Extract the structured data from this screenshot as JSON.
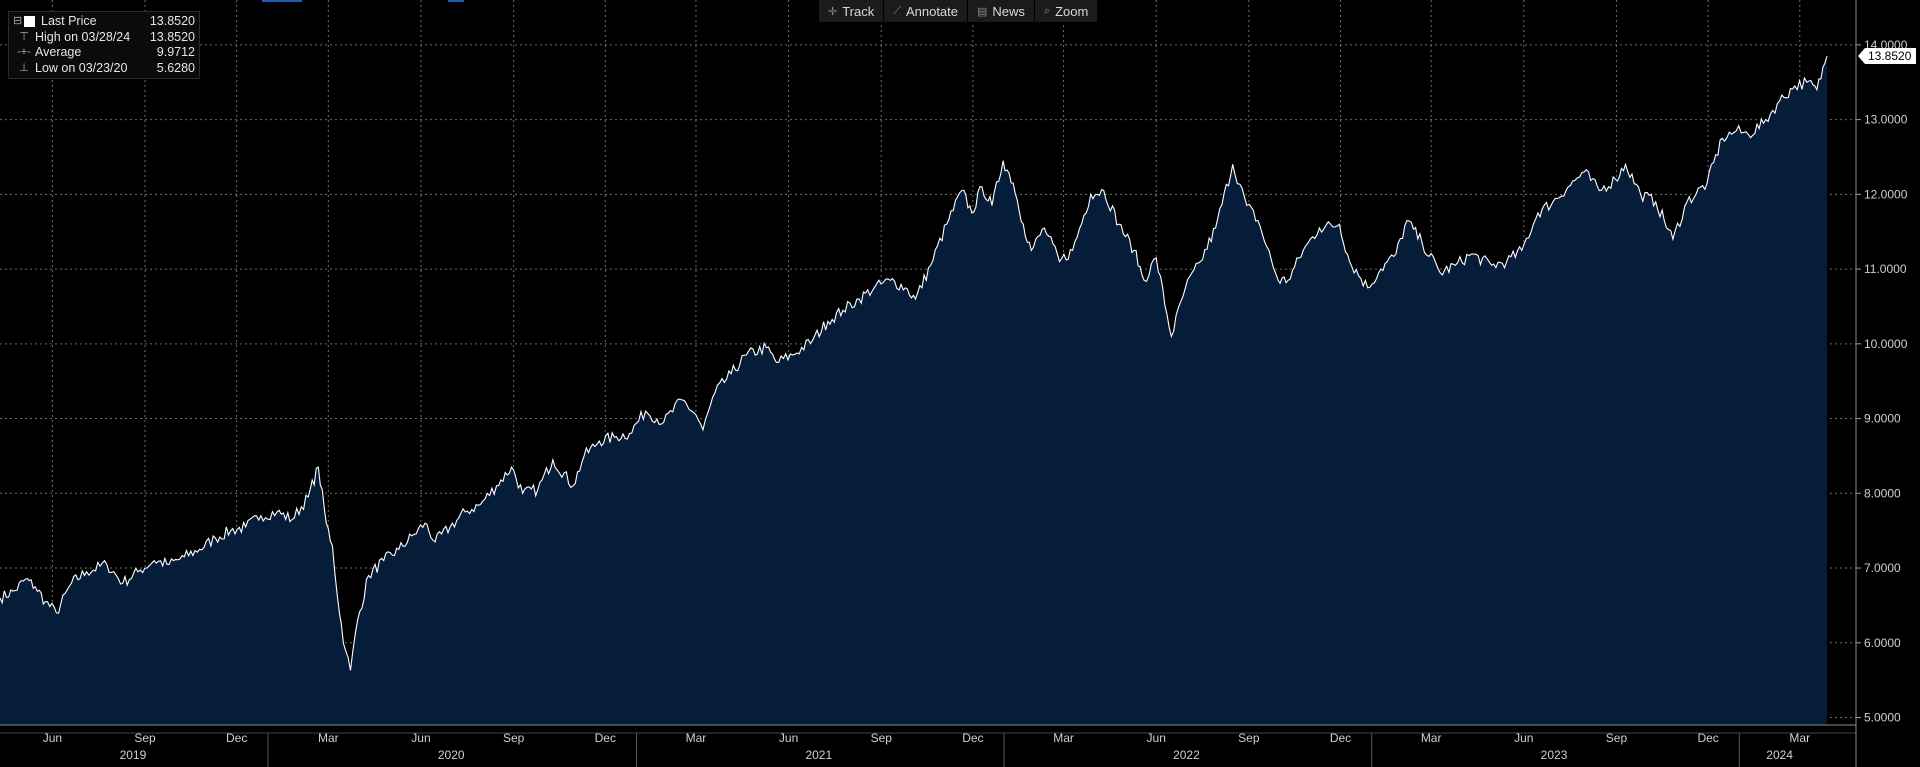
{
  "toolbar": {
    "track": "Track",
    "annotate": "Annotate",
    "news": "News",
    "zoom": "Zoom"
  },
  "legend": {
    "last_label": "Last Price",
    "last_value": "13.8520",
    "high_label": "High on 03/28/24",
    "high_value": "13.8520",
    "avg_label": "Average",
    "avg_value": "9.9712",
    "low_label": "Low on 03/23/20",
    "low_value": "5.6280"
  },
  "price_tag": "13.8520",
  "colors": {
    "background": "#000000",
    "area_fill": "#061d3a",
    "line": "#ffffff",
    "grid": "#6e6e6e"
  },
  "chart_data": {
    "type": "area",
    "title": "",
    "xlabel": "",
    "ylabel": "",
    "ylim": [
      4.9,
      14.6
    ],
    "y_ticks": [
      "5.0000",
      "6.0000",
      "7.0000",
      "8.0000",
      "9.0000",
      "10.0000",
      "11.0000",
      "12.0000",
      "13.0000",
      "14.0000"
    ],
    "x_range": [
      "2019-04-10",
      "2024-04-02"
    ],
    "month_ticks": [
      {
        "date": "2019-06-01",
        "label": "Jun"
      },
      {
        "date": "2019-09-01",
        "label": "Sep"
      },
      {
        "date": "2019-12-01",
        "label": "Dec"
      },
      {
        "date": "2020-03-01",
        "label": "Mar"
      },
      {
        "date": "2020-06-01",
        "label": "Jun"
      },
      {
        "date": "2020-09-01",
        "label": "Sep"
      },
      {
        "date": "2020-12-01",
        "label": "Dec"
      },
      {
        "date": "2021-03-01",
        "label": "Mar"
      },
      {
        "date": "2021-06-01",
        "label": "Jun"
      },
      {
        "date": "2021-09-01",
        "label": "Sep"
      },
      {
        "date": "2021-12-01",
        "label": "Dec"
      },
      {
        "date": "2022-03-01",
        "label": "Mar"
      },
      {
        "date": "2022-06-01",
        "label": "Jun"
      },
      {
        "date": "2022-09-01",
        "label": "Sep"
      },
      {
        "date": "2022-12-01",
        "label": "Dec"
      },
      {
        "date": "2023-03-01",
        "label": "Mar"
      },
      {
        "date": "2023-06-01",
        "label": "Jun"
      },
      {
        "date": "2023-09-01",
        "label": "Sep"
      },
      {
        "date": "2023-12-01",
        "label": "Dec"
      },
      {
        "date": "2024-03-01",
        "label": "Mar"
      }
    ],
    "year_labels": [
      {
        "date": "2019-08-20",
        "label": "2019"
      },
      {
        "date": "2020-07-01",
        "label": "2020"
      },
      {
        "date": "2021-07-01",
        "label": "2021"
      },
      {
        "date": "2022-07-01",
        "label": "2022"
      },
      {
        "date": "2023-07-01",
        "label": "2023"
      },
      {
        "date": "2024-02-10",
        "label": "2024"
      }
    ],
    "year_dividers": [
      "2020-01-01",
      "2021-01-01",
      "2022-01-01",
      "2023-01-01",
      "2024-01-01"
    ],
    "series": [
      {
        "name": "Last Price",
        "points": [
          [
            "2019-04-10",
            6.6
          ],
          [
            "2019-04-25",
            6.7
          ],
          [
            "2019-05-05",
            6.85
          ],
          [
            "2019-05-15",
            6.75
          ],
          [
            "2019-05-25",
            6.55
          ],
          [
            "2019-06-05",
            6.4
          ],
          [
            "2019-06-20",
            6.8
          ],
          [
            "2019-07-05",
            6.95
          ],
          [
            "2019-07-25",
            7.05
          ],
          [
            "2019-08-10",
            6.8
          ],
          [
            "2019-08-25",
            6.95
          ],
          [
            "2019-09-10",
            7.1
          ],
          [
            "2019-09-25",
            7.05
          ],
          [
            "2019-10-10",
            7.15
          ],
          [
            "2019-10-25",
            7.25
          ],
          [
            "2019-11-10",
            7.4
          ],
          [
            "2019-11-25",
            7.5
          ],
          [
            "2019-12-10",
            7.55
          ],
          [
            "2019-12-25",
            7.7
          ],
          [
            "2020-01-10",
            7.75
          ],
          [
            "2020-01-25",
            7.65
          ],
          [
            "2020-02-10",
            7.95
          ],
          [
            "2020-02-20",
            8.35
          ],
          [
            "2020-02-28",
            7.6
          ],
          [
            "2020-03-05",
            7.3
          ],
          [
            "2020-03-12",
            6.4
          ],
          [
            "2020-03-18",
            5.9
          ],
          [
            "2020-03-23",
            5.63
          ],
          [
            "2020-03-30",
            6.3
          ],
          [
            "2020-04-10",
            6.9
          ],
          [
            "2020-04-25",
            7.1
          ],
          [
            "2020-05-10",
            7.25
          ],
          [
            "2020-05-25",
            7.45
          ],
          [
            "2020-06-05",
            7.6
          ],
          [
            "2020-06-15",
            7.35
          ],
          [
            "2020-06-30",
            7.55
          ],
          [
            "2020-07-15",
            7.75
          ],
          [
            "2020-07-30",
            7.85
          ],
          [
            "2020-08-15",
            8.1
          ],
          [
            "2020-08-30",
            8.35
          ],
          [
            "2020-09-10",
            8.0
          ],
          [
            "2020-09-25",
            8.05
          ],
          [
            "2020-10-10",
            8.45
          ],
          [
            "2020-10-30",
            8.1
          ],
          [
            "2020-11-10",
            8.5
          ],
          [
            "2020-11-25",
            8.7
          ],
          [
            "2020-12-10",
            8.75
          ],
          [
            "2020-12-25",
            8.8
          ],
          [
            "2021-01-10",
            9.1
          ],
          [
            "2021-01-28",
            8.95
          ],
          [
            "2021-02-15",
            9.25
          ],
          [
            "2021-03-01",
            9.05
          ],
          [
            "2021-03-08",
            8.85
          ],
          [
            "2021-03-20",
            9.35
          ],
          [
            "2021-04-05",
            9.6
          ],
          [
            "2021-04-20",
            9.85
          ],
          [
            "2021-05-10",
            9.95
          ],
          [
            "2021-05-20",
            9.75
          ],
          [
            "2021-06-05",
            9.85
          ],
          [
            "2021-06-25",
            10.05
          ],
          [
            "2021-07-10",
            10.3
          ],
          [
            "2021-07-25",
            10.45
          ],
          [
            "2021-08-10",
            10.6
          ],
          [
            "2021-08-25",
            10.75
          ],
          [
            "2021-09-10",
            10.85
          ],
          [
            "2021-09-25",
            10.75
          ],
          [
            "2021-10-05",
            10.6
          ],
          [
            "2021-10-20",
            11.05
          ],
          [
            "2021-11-05",
            11.6
          ],
          [
            "2021-11-20",
            12.05
          ],
          [
            "2021-11-30",
            11.75
          ],
          [
            "2021-12-10",
            12.1
          ],
          [
            "2021-12-20",
            11.85
          ],
          [
            "2021-12-31",
            12.45
          ],
          [
            "2022-01-10",
            12.15
          ],
          [
            "2022-01-20",
            11.6
          ],
          [
            "2022-01-28",
            11.25
          ],
          [
            "2022-02-10",
            11.55
          ],
          [
            "2022-02-25",
            11.1
          ],
          [
            "2022-03-10",
            11.25
          ],
          [
            "2022-03-28",
            12.0
          ],
          [
            "2022-04-10",
            12.05
          ],
          [
            "2022-04-25",
            11.6
          ],
          [
            "2022-05-10",
            11.25
          ],
          [
            "2022-05-20",
            10.85
          ],
          [
            "2022-06-01",
            11.15
          ],
          [
            "2022-06-16",
            10.1
          ],
          [
            "2022-06-30",
            10.75
          ],
          [
            "2022-07-15",
            11.1
          ],
          [
            "2022-07-30",
            11.55
          ],
          [
            "2022-08-16",
            12.4
          ],
          [
            "2022-08-30",
            11.85
          ],
          [
            "2022-09-10",
            11.65
          ],
          [
            "2022-09-30",
            10.85
          ],
          [
            "2022-10-10",
            10.85
          ],
          [
            "2022-10-25",
            11.25
          ],
          [
            "2022-11-10",
            11.55
          ],
          [
            "2022-11-30",
            11.6
          ],
          [
            "2022-12-10",
            11.1
          ],
          [
            "2022-12-28",
            10.75
          ],
          [
            "2023-01-10",
            11.0
          ],
          [
            "2023-01-25",
            11.2
          ],
          [
            "2023-02-05",
            11.65
          ],
          [
            "2023-02-20",
            11.35
          ],
          [
            "2023-03-10",
            10.95
          ],
          [
            "2023-03-25",
            11.05
          ],
          [
            "2023-04-10",
            11.2
          ],
          [
            "2023-04-30",
            11.05
          ],
          [
            "2023-05-15",
            11.1
          ],
          [
            "2023-05-30",
            11.25
          ],
          [
            "2023-06-15",
            11.75
          ],
          [
            "2023-06-30",
            11.9
          ],
          [
            "2023-07-15",
            12.1
          ],
          [
            "2023-07-31",
            12.3
          ],
          [
            "2023-08-15",
            12.05
          ],
          [
            "2023-08-31",
            12.2
          ],
          [
            "2023-09-10",
            12.4
          ],
          [
            "2023-09-25",
            12.0
          ],
          [
            "2023-10-10",
            11.9
          ],
          [
            "2023-10-27",
            11.4
          ],
          [
            "2023-11-10",
            11.9
          ],
          [
            "2023-11-30",
            12.15
          ],
          [
            "2023-12-15",
            12.75
          ],
          [
            "2023-12-29",
            12.85
          ],
          [
            "2024-01-10",
            12.8
          ],
          [
            "2024-01-25",
            12.95
          ],
          [
            "2024-02-10",
            13.25
          ],
          [
            "2024-02-25",
            13.45
          ],
          [
            "2024-03-08",
            13.5
          ],
          [
            "2024-03-18",
            13.4
          ],
          [
            "2024-03-28",
            13.85
          ]
        ]
      }
    ]
  }
}
